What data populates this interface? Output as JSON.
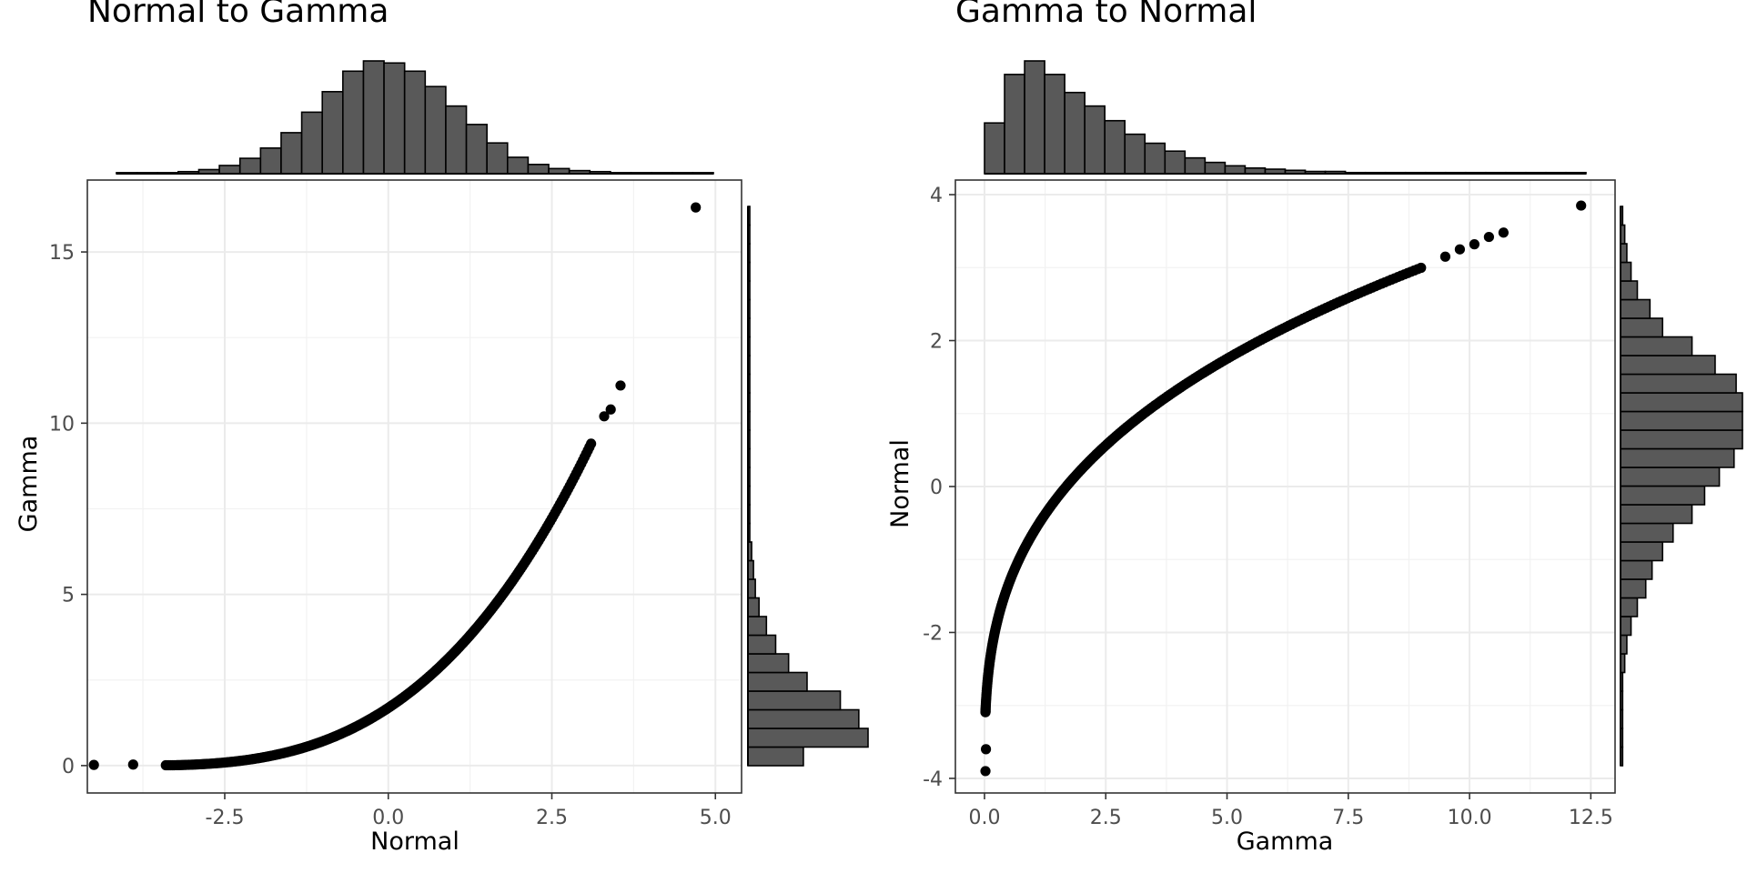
{
  "chart_data": [
    {
      "type": "scatter",
      "title": "Normal to Gamma",
      "xlabel": "Normal",
      "ylabel": "Gamma",
      "xlim": [
        -4.6,
        5.4
      ],
      "ylim": [
        -0.8,
        17.1
      ],
      "xticks": [
        -2.5,
        0.0,
        2.5,
        5.0
      ],
      "xtick_labels": [
        "-2.5",
        "0.0",
        "2.5",
        "5.0"
      ],
      "yticks": [
        0,
        5,
        10,
        15
      ],
      "ytick_labels": [
        "0",
        "5",
        "10",
        "15"
      ],
      "grid": true,
      "curve": {
        "x_range": [
          -3.4,
          3.1
        ],
        "shape": "gamma quantile of normal"
      },
      "outliers": [
        [
          -4.5,
          0.02
        ],
        [
          -3.9,
          0.03
        ],
        [
          3.3,
          10.2
        ],
        [
          3.4,
          10.4
        ],
        [
          3.55,
          11.1
        ],
        [
          4.7,
          16.3
        ]
      ],
      "marginal_x_histogram": {
        "bin_start": -4.4,
        "bin_width": 0.32,
        "counts": [
          1,
          1,
          1,
          2,
          4,
          8,
          15,
          25,
          40,
          60,
          80,
          100,
          110,
          108,
          100,
          85,
          66,
          48,
          30,
          16,
          9,
          5,
          3,
          2,
          1,
          1,
          1,
          1,
          1
        ]
      },
      "marginal_y_histogram": {
        "bin_start": -0.1,
        "bin_width": 0.55,
        "counts": [
          30,
          65,
          60,
          50,
          32,
          22,
          15,
          10,
          6,
          4,
          3,
          2,
          1,
          1,
          1,
          1,
          1,
          1,
          1,
          1,
          1,
          1,
          1,
          1,
          1,
          1,
          1,
          1,
          1,
          1
        ]
      }
    },
    {
      "type": "scatter",
      "title": "Gamma to Normal",
      "xlabel": "Gamma",
      "ylabel": "Normal",
      "xlim": [
        -0.6,
        13.0
      ],
      "ylim": [
        -4.2,
        4.2
      ],
      "xticks": [
        0.0,
        2.5,
        5.0,
        7.5,
        10.0,
        12.5
      ],
      "xtick_labels": [
        "0.0",
        "2.5",
        "5.0",
        "7.5",
        "10.0",
        "12.5"
      ],
      "yticks": [
        -4,
        -2,
        0,
        2,
        4
      ],
      "ytick_labels": [
        "-4",
        "-2",
        "0",
        "2",
        "4"
      ],
      "grid": true,
      "curve": {
        "x_range": [
          0.02,
          9.0
        ],
        "shape": "normal quantile of gamma"
      },
      "outliers": [
        [
          0.02,
          -3.9
        ],
        [
          0.03,
          -3.6
        ],
        [
          9.5,
          3.15
        ],
        [
          9.8,
          3.25
        ],
        [
          10.1,
          3.32
        ],
        [
          10.4,
          3.42
        ],
        [
          10.7,
          3.48
        ],
        [
          12.3,
          3.85
        ]
      ],
      "marginal_x_histogram": {
        "bin_start": 0.0,
        "bin_width": 0.42,
        "counts": [
          45,
          88,
          100,
          88,
          72,
          60,
          47,
          35,
          27,
          20,
          14,
          10,
          7,
          5,
          4,
          3,
          2,
          2,
          1,
          1,
          1,
          1,
          1,
          1,
          1,
          1,
          1,
          1,
          1,
          1
        ]
      },
      "marginal_y_histogram": {
        "bin_start": -3.85,
        "bin_width": 0.28,
        "counts": [
          1,
          1,
          1,
          1,
          1,
          2,
          3,
          5,
          8,
          12,
          15,
          20,
          25,
          34,
          40,
          47,
          54,
          58,
          58,
          58,
          55,
          45,
          34,
          20,
          14,
          8,
          5,
          3,
          2,
          1
        ]
      }
    }
  ]
}
